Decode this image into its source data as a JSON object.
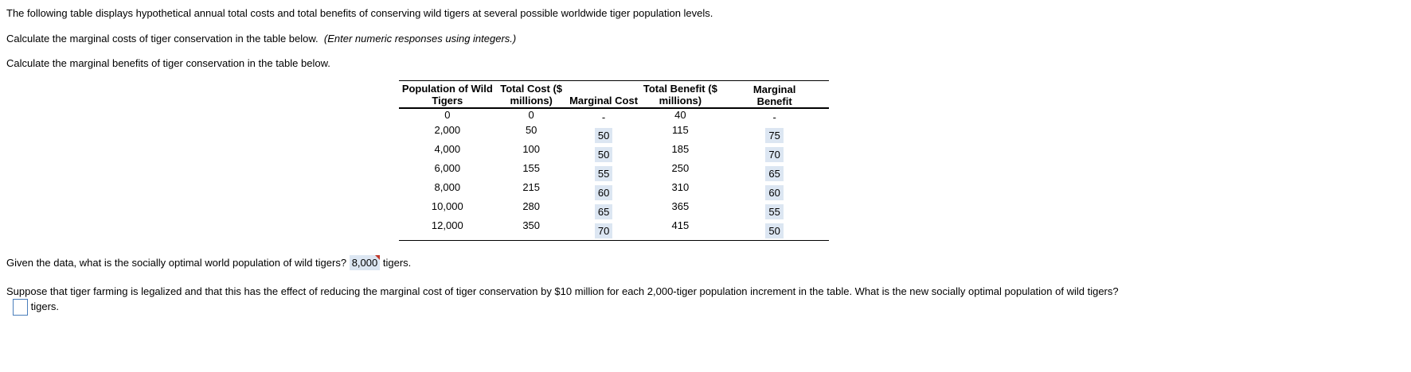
{
  "intro": "The following table displays hypothetical annual total costs and total benefits of conserving wild tigers at several possible worldwide tiger population levels.",
  "instruction_mc": "Calculate the marginal costs of tiger conservation in the table below.",
  "instruction_mc_note": "(Enter numeric responses using integers.)",
  "instruction_mb": "Calculate the marginal benefits of tiger conservation in the table below.",
  "table": {
    "headers": [
      "Population of Wild Tigers",
      "Total Cost ($ millions)",
      "Marginal Cost",
      "Total Benefit ($ millions)",
      "Marginal Benefit"
    ],
    "rows": [
      {
        "pop": "0",
        "tc": "0",
        "mc": "-",
        "tb": "40",
        "mb": "-"
      },
      {
        "pop": "2,000",
        "tc": "50",
        "mc": "50",
        "tb": "115",
        "mb": "75"
      },
      {
        "pop": "4,000",
        "tc": "100",
        "mc": "50",
        "tb": "185",
        "mb": "70"
      },
      {
        "pop": "6,000",
        "tc": "155",
        "mc": "55",
        "tb": "250",
        "mb": "65"
      },
      {
        "pop": "8,000",
        "tc": "215",
        "mc": "60",
        "tb": "310",
        "mb": "60"
      },
      {
        "pop": "10,000",
        "tc": "280",
        "mc": "65",
        "tb": "365",
        "mb": "55"
      },
      {
        "pop": "12,000",
        "tc": "350",
        "mc": "70",
        "tb": "415",
        "mb": "50"
      }
    ]
  },
  "q1": {
    "text": "Given the data, what is the socially optimal world population of wild tigers?",
    "answer": "8,000",
    "suffix": "tigers."
  },
  "q2": {
    "text": "Suppose that tiger farming is legalized and that this has the effect of reducing the marginal cost of tiger conservation by $10 million for each 2,000-tiger population increment in the table.  What is the new socially optimal population of wild tigers?",
    "answer": "",
    "suffix": "tigers."
  },
  "colors": {
    "answer_bg": "#dce6f2",
    "input_border": "#4a7ebb",
    "flag": "#c0392b"
  }
}
